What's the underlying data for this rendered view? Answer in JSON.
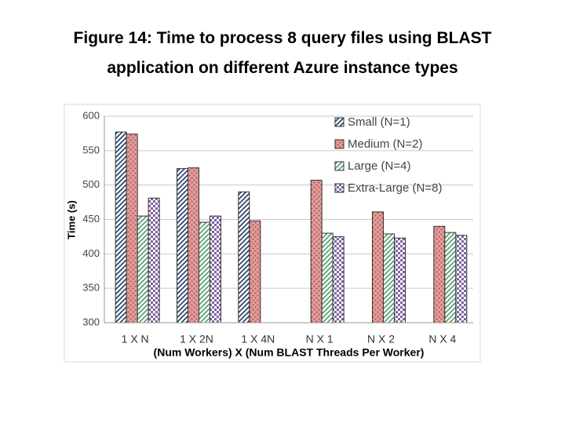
{
  "chart_data": {
    "type": "bar",
    "title": "Figure 14: Time to process 8 query files using BLAST application on different Azure instance types",
    "y_label": "Time (s)",
    "x_label": "(Num Workers) X (Num BLAST Threads Per Worker)",
    "categories": [
      "1 X N",
      "1 X 2N",
      "1 X 4N",
      "N X 1",
      "N X 2",
      "N X 4"
    ],
    "series": [
      {
        "name": "Small (N=1)",
        "color": "#1f3864",
        "pattern": "diagonal",
        "values": [
          577,
          524,
          490,
          null,
          null,
          null
        ]
      },
      {
        "name": "Medium (N=2)",
        "color": "#c0504d",
        "pattern": "dots",
        "values": [
          574,
          525,
          448,
          507,
          461,
          440
        ]
      },
      {
        "name": "Large (N=4)",
        "color": "#4f9a6a",
        "pattern": "diagonal",
        "values": [
          455,
          446,
          null,
          430,
          429,
          431
        ]
      },
      {
        "name": "Extra-Large (N=8)",
        "color": "#8064a2",
        "pattern": "checker",
        "values": [
          481,
          455,
          null,
          425,
          423,
          427
        ]
      }
    ],
    "ylim": [
      300,
      600
    ],
    "yticks": [
      300,
      350,
      400,
      450,
      500,
      550,
      600
    ],
    "grid": true,
    "legend": "top-right"
  }
}
